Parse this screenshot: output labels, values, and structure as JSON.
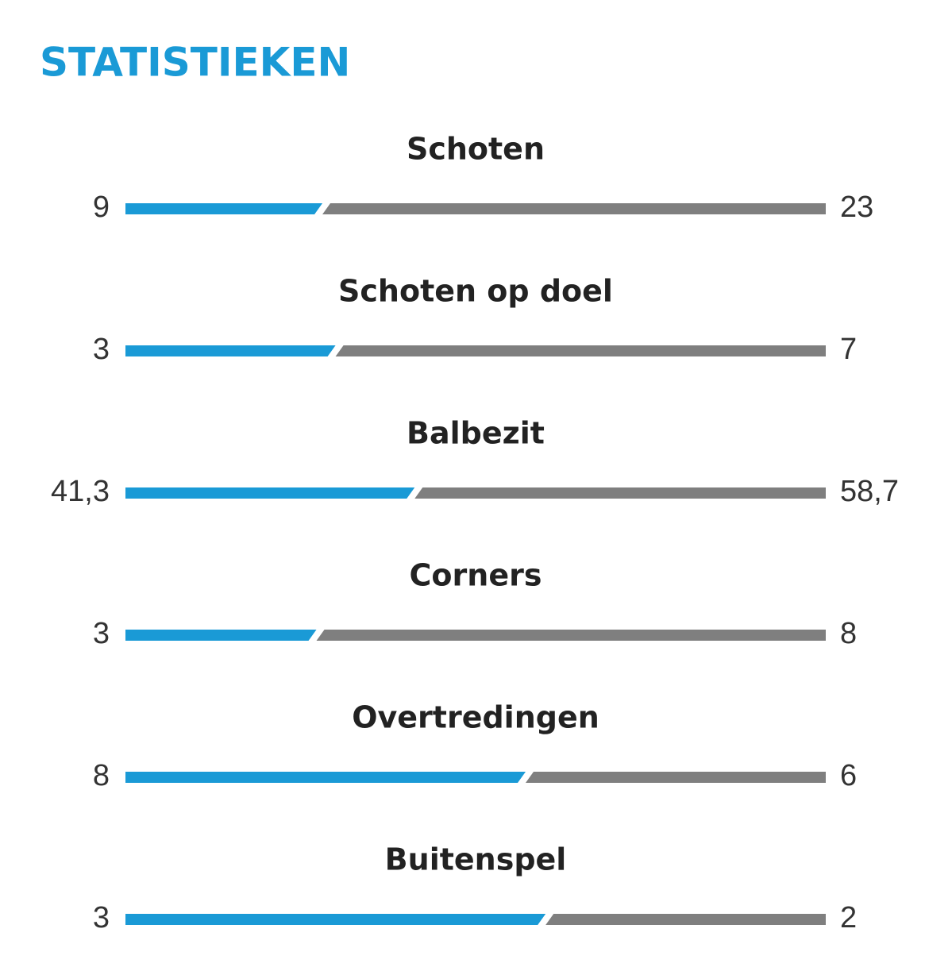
{
  "title": "STATISTIEKEN",
  "stats": [
    {
      "label": "Schoten",
      "home": 9,
      "away": 23
    },
    {
      "label": "Schoten op doel",
      "home": 3,
      "away": 7
    },
    {
      "label": "Balbezit",
      "home": {
        "value": 41.3,
        "label": "41,3"
      },
      "away": {
        "value": 58.7,
        "label": "58,7"
      }
    },
    {
      "label": "Corners",
      "home": 3,
      "away": 8
    },
    {
      "label": "Overtredingen",
      "home": 8,
      "away": 6
    },
    {
      "label": "Buitenspel",
      "home": 3,
      "away": 2
    }
  ],
  "home_color": "#1a9ad6",
  "away_color": "#7f7f7f"
}
